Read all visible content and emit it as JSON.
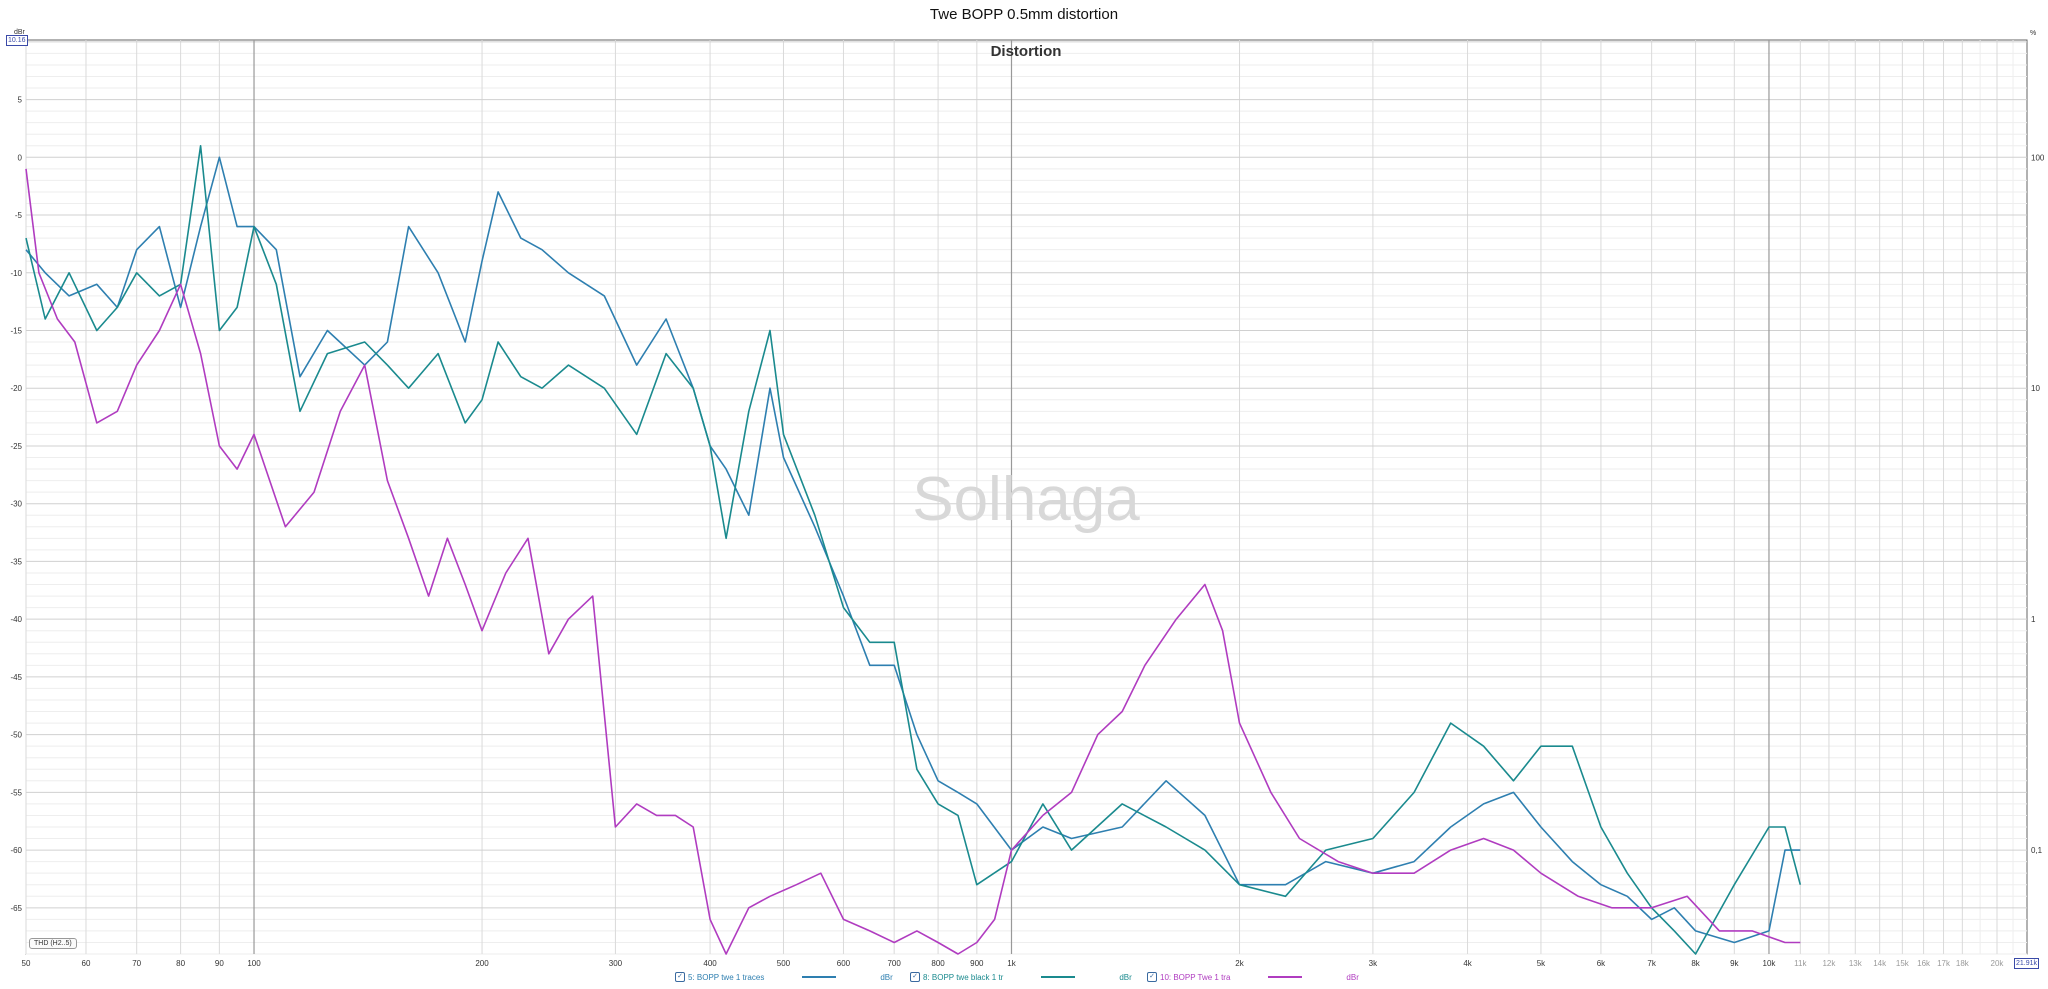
{
  "window": {
    "title": "Twe BOPP 0.5mm distortion"
  },
  "corner": {
    "left_unit": "dBr",
    "right_unit": "%",
    "top_value": "10.16",
    "right_end": "21.91k"
  },
  "thd_label": "THD (H2..5)",
  "watermark": "Solhaga",
  "legend": [
    {
      "check": "✓",
      "label": "5: BOPP twe 1 traces",
      "unit": "dBr",
      "color": "#2e7fb0"
    },
    {
      "check": "✓",
      "label": "8: BOPP twe black 1 tr",
      "unit": "dBr",
      "color": "#1a8a8e"
    },
    {
      "check": "✓",
      "label": "10: BOPP Twe 1 tra",
      "unit": "dBr",
      "color": "#b03cc0"
    }
  ],
  "chart_data": {
    "type": "line",
    "title": "Distortion",
    "x_scale": "log",
    "xlim": [
      50,
      21910
    ],
    "ylim": [
      -69,
      10.16
    ],
    "y2_scale": "log",
    "y2_ticks": [
      100,
      10,
      1,
      0.1
    ],
    "y2_labels": [
      "100",
      "10",
      "1",
      "0,1"
    ],
    "x_ticks": [
      50,
      60,
      70,
      80,
      90,
      100,
      200,
      300,
      400,
      500,
      600,
      700,
      800,
      900,
      1000,
      2000,
      3000,
      4000,
      5000,
      6000,
      7000,
      8000,
      9000,
      10000,
      11000,
      12000,
      13000,
      14000,
      15000,
      16000,
      17000,
      18000,
      20000
    ],
    "x_tick_labels": [
      "50",
      "60",
      "70",
      "80",
      "90",
      "100",
      "200",
      "300",
      "400",
      "500",
      "600",
      "700",
      "800",
      "900",
      "1k",
      "2k",
      "3k",
      "4k",
      "5k",
      "6k",
      "7k",
      "8k",
      "9k",
      "10k",
      "11k",
      "12k",
      "13k",
      "14k",
      "15k",
      "16k",
      "17k",
      "18k",
      "20k"
    ],
    "y_ticks": [
      5,
      0,
      -5,
      -10,
      -15,
      -20,
      -25,
      -30,
      -35,
      -40,
      -45,
      -50,
      -55,
      -60,
      -65
    ],
    "grid": true,
    "series": [
      {
        "name": "5: BOPP twe 1 traces",
        "color": "#2e7fb0",
        "x": [
          50,
          53,
          57,
          62,
          66,
          70,
          75,
          80,
          85,
          90,
          95,
          100,
          107,
          115,
          125,
          140,
          150,
          160,
          175,
          190,
          200,
          210,
          225,
          240,
          260,
          290,
          320,
          350,
          380,
          400,
          420,
          450,
          480,
          500,
          550,
          600,
          650,
          700,
          750,
          800,
          850,
          900,
          1000,
          1100,
          1200,
          1400,
          1600,
          1800,
          2000,
          2300,
          2600,
          3000,
          3400,
          3800,
          4200,
          4600,
          5000,
          5500,
          6000,
          6500,
          7000,
          7500,
          8000,
          9000,
          10000,
          10500,
          11000
        ],
        "y": [
          -8,
          -10,
          -12,
          -11,
          -13,
          -8,
          -6,
          -13,
          -6,
          0,
          -6,
          -6,
          -8,
          -19,
          -15,
          -18,
          -16,
          -6,
          -10,
          -16,
          -9,
          -3,
          -7,
          -8,
          -10,
          -12,
          -18,
          -14,
          -20,
          -25,
          -27,
          -31,
          -20,
          -26,
          -32,
          -38,
          -44,
          -44,
          -50,
          -54,
          -55,
          -56,
          -60,
          -58,
          -59,
          -58,
          -54,
          -57,
          -63,
          -63,
          -61,
          -62,
          -61,
          -58,
          -56,
          -55,
          -58,
          -61,
          -63,
          -64,
          -66,
          -65,
          -67,
          -68,
          -67,
          -60,
          -60
        ]
      },
      {
        "name": "8: BOPP twe black 1 tr",
        "color": "#1a8a8e",
        "x": [
          50,
          53,
          57,
          62,
          66,
          70,
          75,
          80,
          85,
          90,
          95,
          100,
          107,
          115,
          125,
          140,
          150,
          160,
          175,
          190,
          200,
          210,
          225,
          240,
          260,
          290,
          320,
          350,
          380,
          400,
          420,
          450,
          480,
          500,
          550,
          600,
          650,
          700,
          750,
          800,
          850,
          900,
          1000,
          1100,
          1200,
          1400,
          1600,
          1800,
          2000,
          2300,
          2600,
          3000,
          3400,
          3800,
          4200,
          4600,
          5000,
          5500,
          6000,
          6500,
          7000,
          7500,
          8000,
          9000,
          10000,
          10500,
          11000
        ],
        "y": [
          -7,
          -14,
          -10,
          -15,
          -13,
          -10,
          -12,
          -11,
          1,
          -15,
          -13,
          -6,
          -11,
          -22,
          -17,
          -16,
          -18,
          -20,
          -17,
          -23,
          -21,
          -16,
          -19,
          -20,
          -18,
          -20,
          -24,
          -17,
          -20,
          -25,
          -33,
          -22,
          -15,
          -24,
          -31,
          -39,
          -42,
          -42,
          -53,
          -56,
          -57,
          -63,
          -61,
          -56,
          -60,
          -56,
          -58,
          -60,
          -63,
          -64,
          -60,
          -59,
          -55,
          -49,
          -51,
          -54,
          -51,
          -51,
          -58,
          -62,
          -65,
          -67,
          -69,
          -63,
          -58,
          -58,
          -63
        ]
      },
      {
        "name": "10: BOPP Twe 1 tra",
        "color": "#b03cc0",
        "x": [
          50,
          52,
          55,
          58,
          62,
          66,
          70,
          75,
          80,
          85,
          90,
          95,
          100,
          110,
          120,
          130,
          140,
          150,
          160,
          170,
          180,
          190,
          200,
          215,
          230,
          245,
          260,
          280,
          300,
          320,
          340,
          360,
          380,
          400,
          420,
          450,
          480,
          520,
          560,
          600,
          650,
          700,
          750,
          800,
          850,
          900,
          950,
          1000,
          1100,
          1200,
          1300,
          1400,
          1500,
          1650,
          1800,
          1900,
          2000,
          2200,
          2400,
          2700,
          3000,
          3400,
          3800,
          4200,
          4600,
          5000,
          5600,
          6200,
          7000,
          7800,
          8600,
          9500,
          10500,
          11000
        ],
        "y": [
          -1,
          -10,
          -14,
          -16,
          -23,
          -22,
          -18,
          -15,
          -11,
          -17,
          -25,
          -27,
          -24,
          -32,
          -29,
          -22,
          -18,
          -28,
          -33,
          -38,
          -33,
          -37,
          -41,
          -36,
          -33,
          -43,
          -40,
          -38,
          -58,
          -56,
          -57,
          -57,
          -58,
          -66,
          -69,
          -65,
          -64,
          -63,
          -62,
          -66,
          -67,
          -68,
          -67,
          -68,
          -69,
          -68,
          -66,
          -60,
          -57,
          -55,
          -50,
          -48,
          -44,
          -40,
          -37,
          -41,
          -49,
          -55,
          -59,
          -61,
          -62,
          -62,
          -60,
          -59,
          -60,
          -62,
          -64,
          -65,
          -65,
          -64,
          -67,
          -67,
          -68,
          -68
        ]
      }
    ]
  }
}
